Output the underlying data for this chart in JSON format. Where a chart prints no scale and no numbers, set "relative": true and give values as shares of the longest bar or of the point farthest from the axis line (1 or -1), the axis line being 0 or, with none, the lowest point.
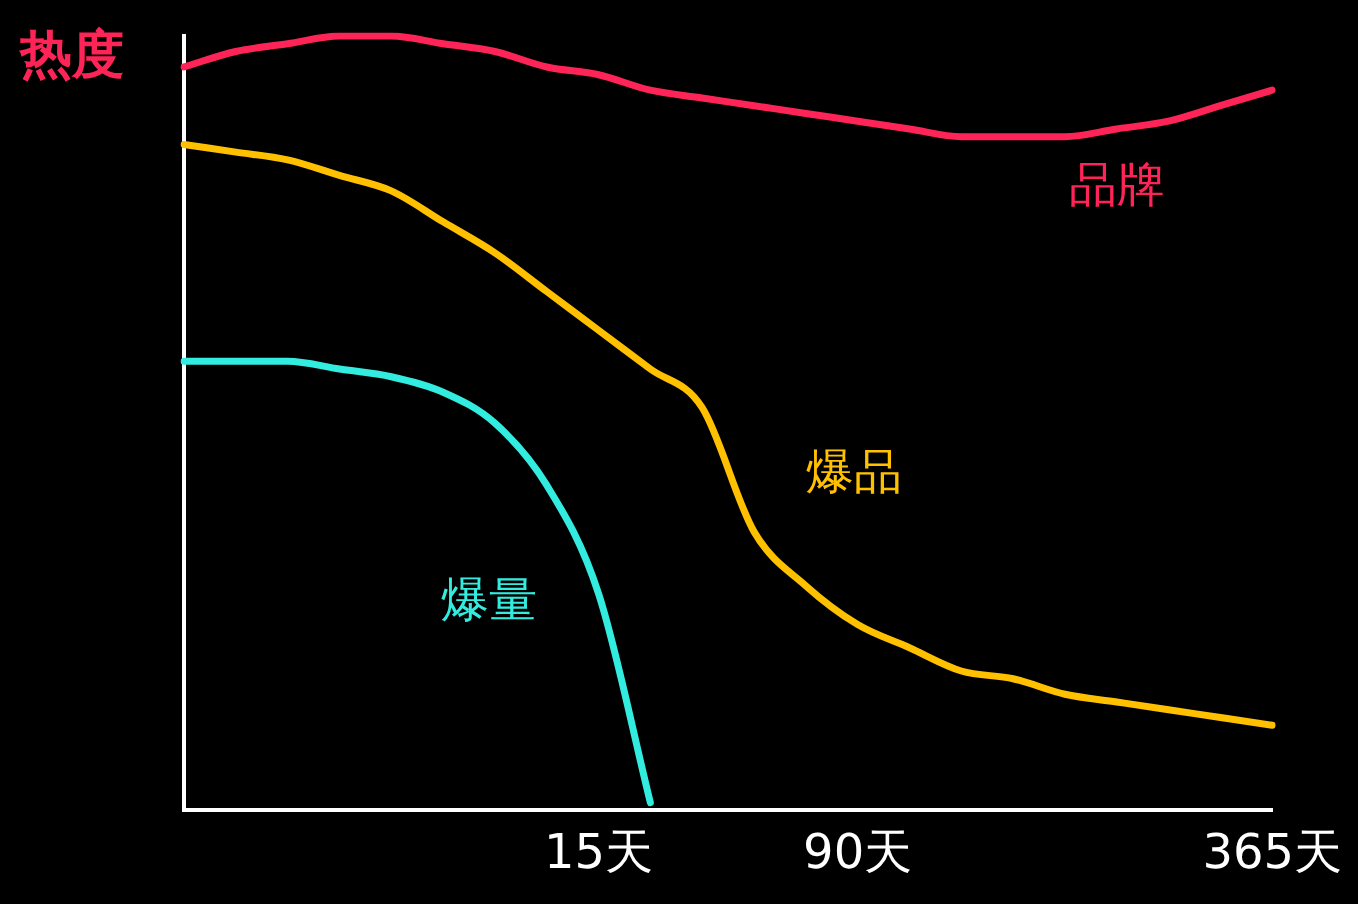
{
  "chart_data": {
    "type": "line",
    "relative": true,
    "ylabel": "热度",
    "legend": false,
    "grid": false,
    "marker": "none",
    "categories": [
      null,
      null,
      null,
      null,
      null,
      null,
      null,
      null,
      "15天",
      null,
      null,
      null,
      null,
      "90天",
      null,
      null,
      null,
      null,
      null,
      null,
      null,
      "365天"
    ],
    "series": [
      {
        "name": "品牌",
        "color": "#ff2458",
        "values": [
          0.96,
          0.98,
          0.99,
          1,
          1,
          0.99,
          0.98,
          0.96,
          0.95,
          0.93,
          0.92,
          0.91,
          0.9,
          0.89,
          0.88,
          0.87,
          0.87,
          0.87,
          0.88,
          0.89,
          0.91,
          0.93
        ]
      },
      {
        "name": "爆品",
        "color": "#ffc000",
        "values": [
          0.86,
          0.85,
          0.84,
          0.82,
          0.8,
          0.76,
          0.72,
          0.67,
          0.62,
          0.57,
          0.52,
          0.36,
          0.29,
          0.24,
          0.21,
          0.18,
          0.17,
          0.15,
          0.14,
          0.13,
          0.12,
          0.11
        ]
      },
      {
        "name": "爆量",
        "color": "#33ece0",
        "values": [
          0.58,
          0.58,
          0.58,
          0.57,
          0.56,
          0.54,
          0.5,
          0.42,
          0.28,
          0.01,
          null,
          null,
          null,
          null,
          null,
          null,
          null,
          null,
          null,
          null,
          null,
          null
        ]
      }
    ]
  }
}
